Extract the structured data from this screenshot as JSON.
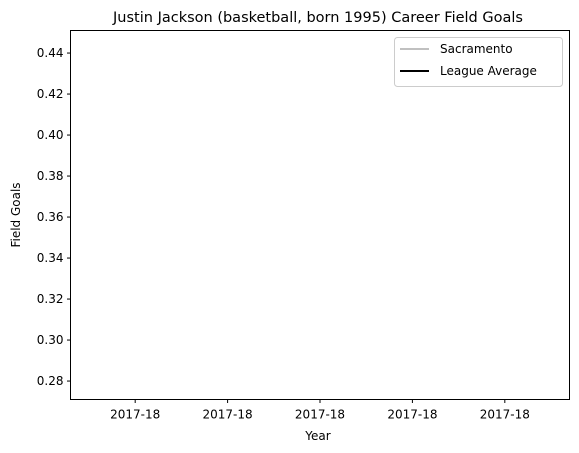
{
  "chart_data": {
    "type": "line",
    "title": "Justin Jackson (basketball, born 1995) Career Field Goals",
    "xlabel": "Year",
    "ylabel": "Field Goals",
    "x_tick_labels": [
      "2017-18",
      "2017-18",
      "2017-18",
      "2017-18",
      "2017-18"
    ],
    "y_ticks": [
      0.28,
      0.3,
      0.32,
      0.34,
      0.36,
      0.38,
      0.4,
      0.42,
      0.44
    ],
    "y_tick_labels": [
      "0.28",
      "0.30",
      "0.32",
      "0.34",
      "0.36",
      "0.38",
      "0.40",
      "0.42",
      "0.44"
    ],
    "ylim": [
      0.271,
      0.451
    ],
    "series": [
      {
        "name": "Sacramento",
        "color": "#c0c0c0",
        "values": []
      },
      {
        "name": "League Average",
        "color": "#000000",
        "values": []
      }
    ],
    "legend_position": "top-right",
    "grid": false
  }
}
